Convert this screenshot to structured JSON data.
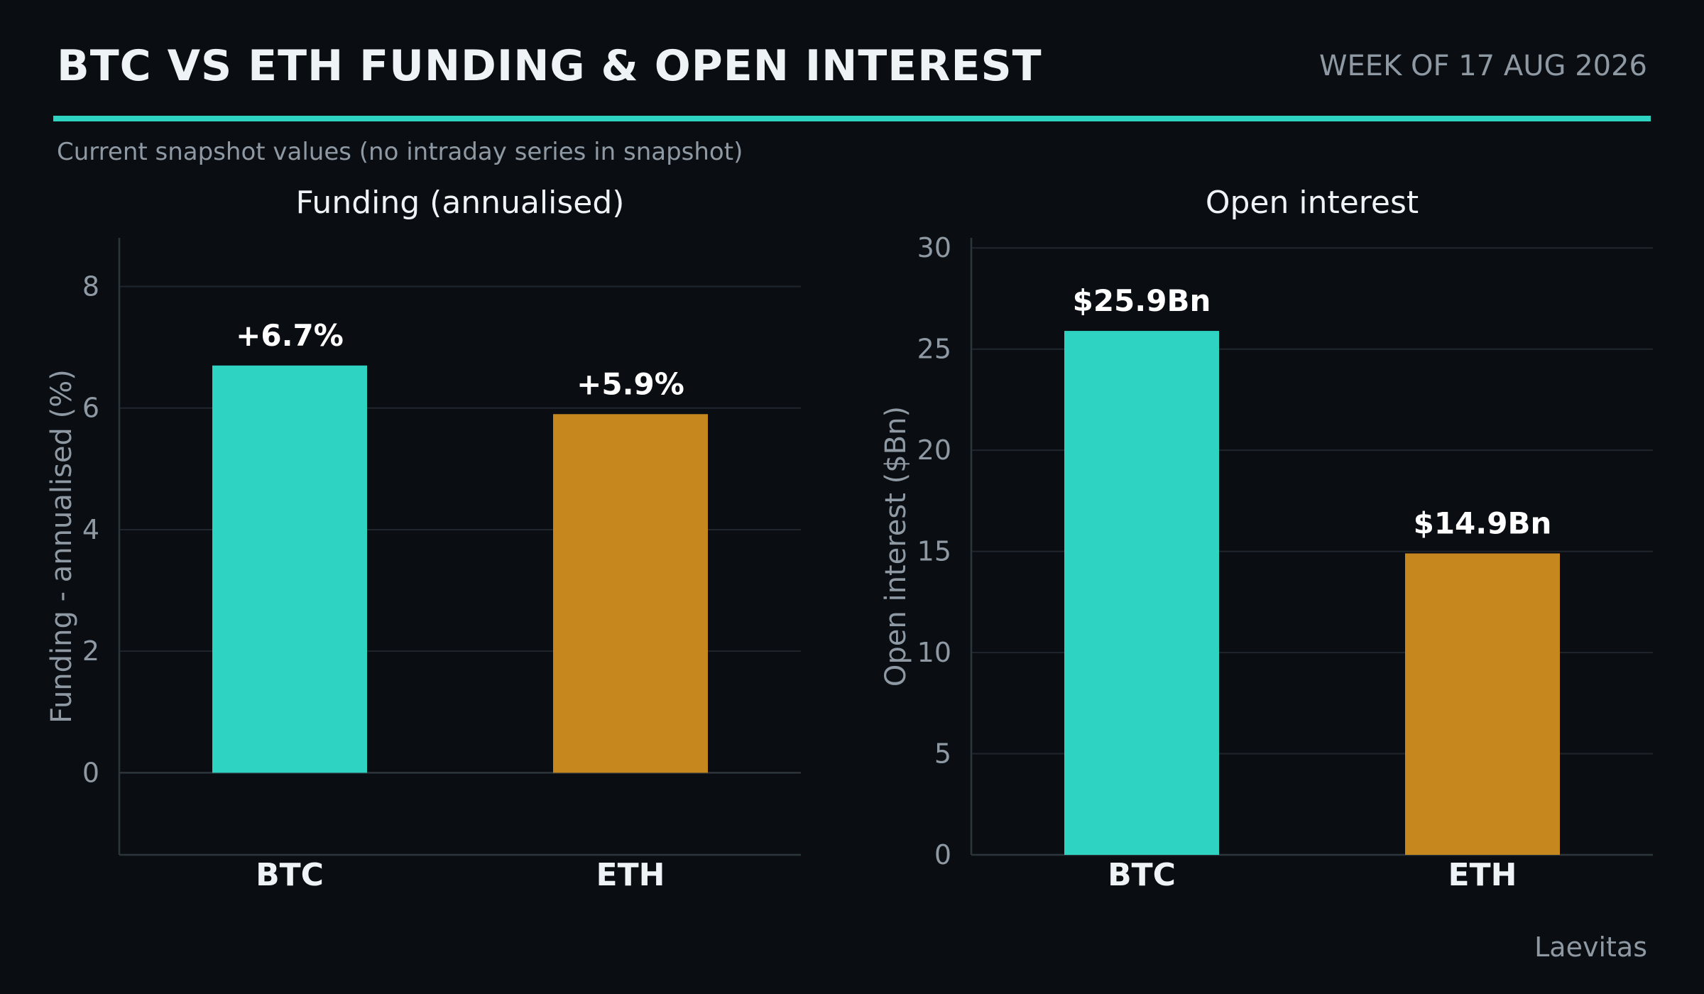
{
  "header": {
    "title": "BTC VS ETH FUNDING & OPEN INTEREST",
    "week": "WEEK OF 17 AUG 2026",
    "subtitle": "Current snapshot values (no intraday series in snapshot)"
  },
  "footer": {
    "source": "Laevitas"
  },
  "colors": {
    "accent": "#2ed3c1",
    "btc": "#2ed3c1",
    "eth": "#c7871f",
    "background": "#0a0e12"
  },
  "chart_data": [
    {
      "type": "bar",
      "title": "Funding (annualised)",
      "xlabel": "",
      "ylabel": "Funding - annualised (%)",
      "categories": [
        "BTC",
        "ETH"
      ],
      "values": [
        6.7,
        5.9
      ],
      "value_labels": [
        "+6.7%",
        "+5.9%"
      ],
      "ylim": [
        -1.35,
        8.8
      ],
      "yticks": [
        0,
        2,
        4,
        6,
        8
      ],
      "grid": true
    },
    {
      "type": "bar",
      "title": "Open interest",
      "xlabel": "",
      "ylabel": "Open interest ($Bn)",
      "categories": [
        "BTC",
        "ETH"
      ],
      "values": [
        25.9,
        14.9
      ],
      "value_labels": [
        "$25.9Bn",
        "$14.9Bn"
      ],
      "ylim": [
        0,
        30.5
      ],
      "yticks": [
        0,
        5,
        10,
        15,
        20,
        25,
        30
      ],
      "grid": true
    }
  ]
}
